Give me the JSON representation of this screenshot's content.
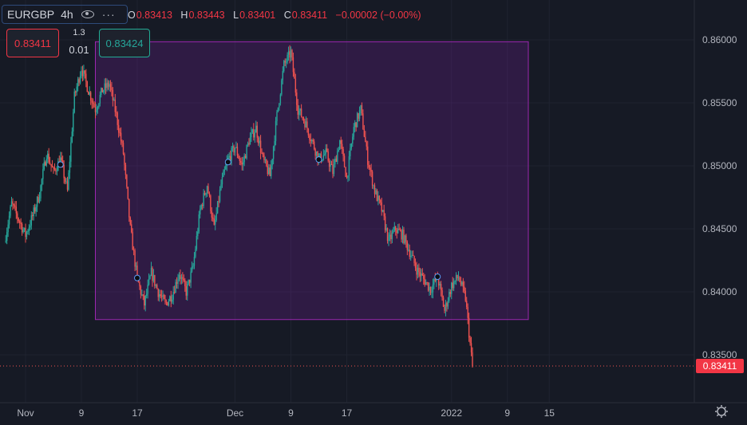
{
  "header": {
    "symbol": "EURGBP",
    "interval": "4h",
    "ohlc": {
      "o_label": "O",
      "o": "0.83413",
      "h_label": "H",
      "h": "0.83443",
      "l_label": "L",
      "l": "0.83401",
      "c_label": "C",
      "c": "0.83411",
      "change": "−0.00002 (−0.00%)"
    }
  },
  "trade_panel": {
    "sell_price": "0.83411",
    "quantity": "1.3",
    "spread": "0.01",
    "buy_price": "0.83424"
  },
  "chart_data": {
    "type": "candlestick",
    "title": "",
    "xlabel": "",
    "ylabel": "",
    "x_ticks": [
      "Nov",
      "9",
      "17",
      "Dec",
      "9",
      "17",
      "2022",
      "9",
      "15"
    ],
    "y_ticks": [
      "0.86000",
      "0.85500",
      "0.85000",
      "0.84500",
      "0.84000",
      "0.83500"
    ],
    "ylim": [
      0.8312,
      0.8625
    ],
    "last_price": 0.83411,
    "last_price_label": "0.83411",
    "range_box": {
      "date_start": "2021-11-11",
      "date_end": "2022-01-12",
      "price_low": 0.8378,
      "price_high": 0.85985
    },
    "markers": [
      {
        "date": "2021-11-06",
        "price": 0.8501
      },
      {
        "date": "2021-11-17",
        "price": 0.8411
      },
      {
        "date": "2021-11-30",
        "price": 0.8503
      },
      {
        "date": "2021-12-13",
        "price": 0.8505
      },
      {
        "date": "2021-12-30",
        "price": 0.8412
      }
    ],
    "path": [
      [
        "2021-10-29",
        0.844
      ],
      [
        "2021-10-30",
        0.847
      ],
      [
        "2021-11-01",
        0.8445
      ],
      [
        "2021-11-02",
        0.846
      ],
      [
        "2021-11-03",
        0.8478
      ],
      [
        "2021-11-04",
        0.851
      ],
      [
        "2021-11-05",
        0.8495
      ],
      [
        "2021-11-06",
        0.8505
      ],
      [
        "2021-11-07",
        0.848
      ],
      [
        "2021-11-08",
        0.8555
      ],
      [
        "2021-11-09",
        0.8578
      ],
      [
        "2021-11-10",
        0.856
      ],
      [
        "2021-11-11",
        0.8545
      ],
      [
        "2021-11-12",
        0.856
      ],
      [
        "2021-11-13",
        0.8565
      ],
      [
        "2021-11-14",
        0.854
      ],
      [
        "2021-11-15",
        0.851
      ],
      [
        "2021-11-16",
        0.845
      ],
      [
        "2021-11-17",
        0.841
      ],
      [
        "2021-11-18",
        0.839
      ],
      [
        "2021-11-19",
        0.8415
      ],
      [
        "2021-11-20",
        0.84
      ],
      [
        "2021-11-21",
        0.839
      ],
      [
        "2021-11-22",
        0.8398
      ],
      [
        "2021-11-23",
        0.8415
      ],
      [
        "2021-11-24",
        0.84
      ],
      [
        "2021-11-25",
        0.842
      ],
      [
        "2021-11-26",
        0.8465
      ],
      [
        "2021-11-27",
        0.8485
      ],
      [
        "2021-11-28",
        0.845
      ],
      [
        "2021-11-29",
        0.8485
      ],
      [
        "2021-11-30",
        0.8505
      ],
      [
        "2021-12-01",
        0.8515
      ],
      [
        "2021-12-02",
        0.85
      ],
      [
        "2021-12-03",
        0.852
      ],
      [
        "2021-12-04",
        0.853
      ],
      [
        "2021-12-05",
        0.8505
      ],
      [
        "2021-12-06",
        0.8492
      ],
      [
        "2021-12-07",
        0.854
      ],
      [
        "2021-12-08",
        0.858
      ],
      [
        "2021-12-09",
        0.859
      ],
      [
        "2021-12-10",
        0.8545
      ],
      [
        "2021-12-11",
        0.8535
      ],
      [
        "2021-12-12",
        0.852
      ],
      [
        "2021-12-13",
        0.8505
      ],
      [
        "2021-12-14",
        0.851
      ],
      [
        "2021-12-15",
        0.8495
      ],
      [
        "2021-12-16",
        0.852
      ],
      [
        "2021-12-17",
        0.849
      ],
      [
        "2021-12-18",
        0.853
      ],
      [
        "2021-12-19",
        0.8545
      ],
      [
        "2021-12-20",
        0.8505
      ],
      [
        "2021-12-21",
        0.848
      ],
      [
        "2021-12-22",
        0.8465
      ],
      [
        "2021-12-23",
        0.844
      ],
      [
        "2021-12-24",
        0.845
      ],
      [
        "2021-12-25",
        0.8445
      ],
      [
        "2021-12-26",
        0.8432
      ],
      [
        "2021-12-27",
        0.8418
      ],
      [
        "2021-12-28",
        0.841
      ],
      [
        "2021-12-29",
        0.8402
      ],
      [
        "2021-12-30",
        0.8412
      ],
      [
        "2021-12-31",
        0.8385
      ],
      [
        "2022-01-01",
        0.8405
      ],
      [
        "2022-01-02",
        0.8412
      ],
      [
        "2022-01-03",
        0.8395
      ],
      [
        "2022-01-04",
        0.834
      ]
    ]
  }
}
